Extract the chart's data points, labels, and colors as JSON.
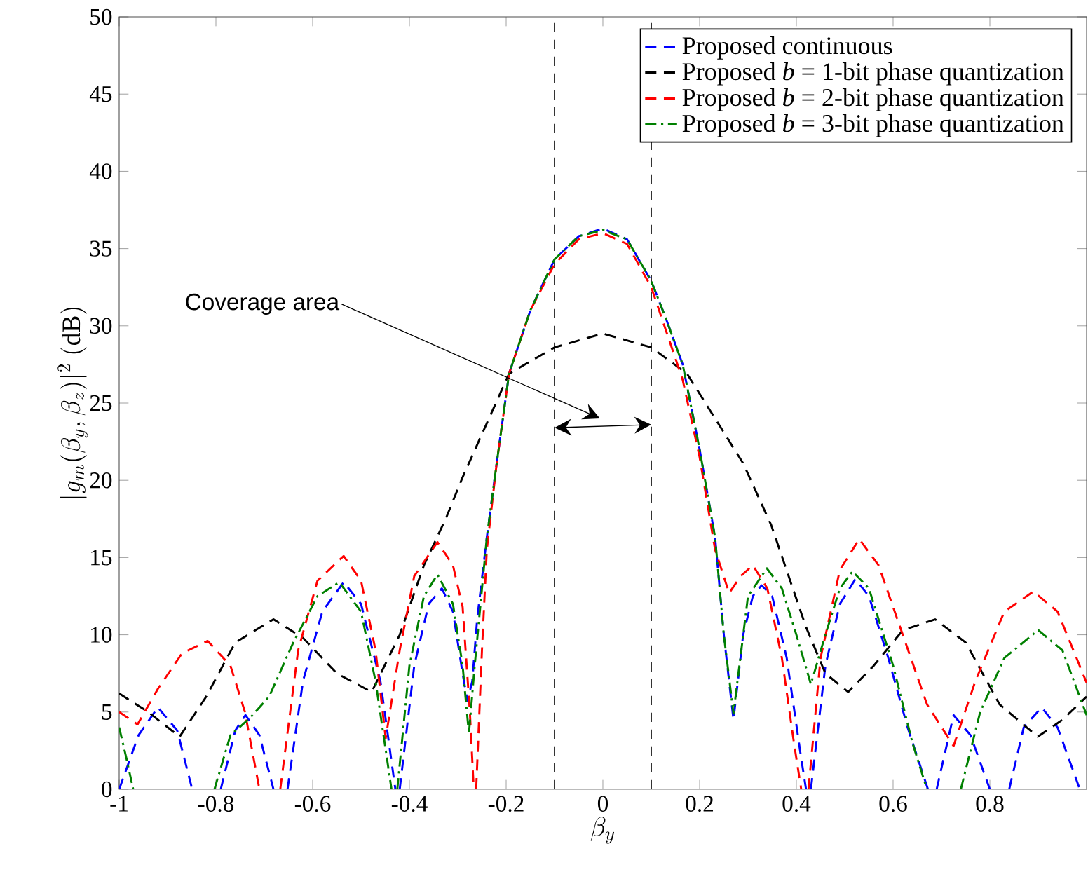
{
  "chart_data": {
    "type": "line",
    "xlabel": "\\beta_y",
    "ylabel": "|g_m(\\beta_y,\\beta_z)|^2~(\\mathrm{dB})",
    "xlim": [
      -1,
      1
    ],
    "ylim": [
      0,
      50
    ],
    "xticks": [
      -1,
      -0.8,
      -0.6,
      -0.4,
      -0.2,
      0,
      0.2,
      0.4,
      0.6,
      0.8
    ],
    "yticks": [
      0,
      5,
      10,
      15,
      20,
      25,
      30,
      35,
      40,
      45,
      50
    ],
    "grid": false,
    "legend": "top right",
    "marker": "none",
    "ref_lines": [
      {
        "axis": "x",
        "value": -0.1,
        "color": "#000000",
        "line_style": "dashed"
      },
      {
        "axis": "x",
        "value": 0.1,
        "color": "#000000",
        "line_style": "dashed"
      }
    ],
    "annotations": [
      "Coverage area"
    ],
    "series": [
      {
        "name": "Proposed continuous",
        "color": "#0000ff",
        "line_style": "dashed",
        "x": [
          -1,
          -0.96,
          -0.92,
          -0.88,
          -0.849,
          -0.82,
          -0.79,
          -0.76,
          -0.739,
          -0.71,
          -0.681,
          -0.665,
          -0.652,
          -0.62,
          -0.58,
          -0.536,
          -0.5,
          -0.46,
          -0.429,
          -0.425,
          -0.42,
          -0.39,
          -0.36,
          -0.333,
          -0.31,
          -0.29,
          -0.28,
          -0.27,
          -0.26,
          -0.24,
          -0.22,
          -0.194,
          -0.15,
          -0.1,
          -0.05,
          0,
          0.05,
          0.1,
          0.13,
          0.165,
          0.2,
          0.232,
          0.25,
          0.27,
          0.29,
          0.31,
          0.328,
          0.35,
          0.38,
          0.41,
          0.42,
          0.425,
          0.43,
          0.46,
          0.49,
          0.522,
          0.55,
          0.59,
          0.63,
          0.672,
          0.68,
          0.69,
          0.725,
          0.76,
          0.8,
          0.82,
          0.84,
          0.87,
          0.907,
          0.94,
          0.986
        ],
        "values": [
          0,
          3.5,
          5.3,
          3.8,
          0,
          null,
          0,
          3.8,
          4.8,
          3.5,
          0,
          null,
          0,
          7,
          11.5,
          13.4,
          12,
          7,
          0,
          null,
          0,
          8,
          12,
          13,
          11.5,
          7.5,
          5.7,
          7,
          11,
          16.3,
          21,
          26.9,
          31,
          34.3,
          35.8,
          36.3,
          35.6,
          32.9,
          30.5,
          27.5,
          22,
          16.3,
          10,
          4.5,
          10,
          12.5,
          13.2,
          12.5,
          8.5,
          2,
          0,
          null,
          0,
          8,
          12,
          13.6,
          12.5,
          8.5,
          4,
          0,
          null,
          0,
          4.8,
          3.5,
          0,
          null,
          0,
          4,
          5.3,
          4,
          0
        ]
      },
      {
        "name": "Proposed *b* = 1-bit phase quantization",
        "color": "#000000",
        "line_style": "dashed",
        "x": [
          -1,
          -0.94,
          -0.875,
          -0.82,
          -0.76,
          -0.681,
          -0.62,
          -0.55,
          -0.478,
          -0.42,
          -0.37,
          -0.325,
          -0.29,
          -0.194,
          -0.1,
          0,
          0.1,
          0.174,
          0.29,
          0.348,
          0.42,
          0.46,
          0.507,
          0.56,
          0.62,
          0.687,
          0.75,
          0.82,
          0.899,
          0.95,
          1
        ],
        "values": [
          6.2,
          5,
          3.4,
          6,
          9.5,
          11,
          9.8,
          7.5,
          6.3,
          10,
          14.5,
          17.5,
          20.2,
          26.9,
          28.6,
          29.5,
          28.6,
          26.9,
          21.1,
          17.1,
          10.5,
          7.5,
          6.3,
          8,
          10.3,
          11,
          9.5,
          5.5,
          3.4,
          4.5,
          6
        ]
      },
      {
        "name": "Proposed *b* = 2-bit phase quantization",
        "color": "#ff0000",
        "line_style": "dashed",
        "x": [
          -1,
          -0.962,
          -0.92,
          -0.87,
          -0.817,
          -0.77,
          -0.74,
          -0.71,
          -0.69,
          -0.667,
          -0.63,
          -0.59,
          -0.536,
          -0.5,
          -0.47,
          -0.449,
          -0.42,
          -0.39,
          -0.342,
          -0.31,
          -0.29,
          -0.275,
          -0.267,
          -0.265,
          -0.262,
          -0.25,
          -0.24,
          -0.22,
          -0.194,
          -0.15,
          -0.1,
          -0.05,
          0,
          0.05,
          0.1,
          0.165,
          0.2,
          0.232,
          0.261,
          0.285,
          0.31,
          0.34,
          0.37,
          0.395,
          0.41,
          0.418,
          0.425,
          0.45,
          0.49,
          0.53,
          0.57,
          0.62,
          0.67,
          0.725,
          0.77,
          0.83,
          0.89,
          0.94,
          1
        ],
        "values": [
          5,
          4.2,
          6.5,
          8.8,
          9.6,
          8,
          5,
          0,
          null,
          0,
          9,
          13.5,
          15.1,
          13.5,
          9,
          3.3,
          9,
          13.8,
          16,
          14.5,
          11.8,
          5,
          0,
          null,
          0,
          9,
          15.5,
          21,
          26.9,
          31,
          34,
          35.6,
          36,
          35.3,
          32.5,
          26.5,
          21.5,
          15.5,
          12.7,
          13.8,
          14.5,
          13,
          8.5,
          3,
          0,
          null,
          0,
          8.5,
          14.2,
          16.2,
          14.5,
          10,
          5.5,
          2.8,
          7,
          11.5,
          12.8,
          11.5,
          6.9
        ]
      },
      {
        "name": "Proposed *b* = 3-bit phase quantization",
        "color": "#008000",
        "line_style": "dashdot",
        "x": [
          -1,
          -0.985,
          -0.971,
          -0.9,
          -0.803,
          -0.77,
          -0.73,
          -0.69,
          -0.64,
          -0.59,
          -0.545,
          -0.5,
          -0.47,
          -0.437,
          -0.43,
          -0.425,
          -0.4,
          -0.37,
          -0.342,
          -0.31,
          -0.29,
          -0.277,
          -0.265,
          -0.24,
          -0.22,
          -0.194,
          -0.15,
          -0.1,
          -0.05,
          0,
          0.05,
          0.1,
          0.13,
          0.165,
          0.2,
          0.232,
          0.25,
          0.27,
          0.3,
          0.339,
          0.37,
          0.4,
          0.43,
          0.46,
          0.49,
          0.516,
          0.55,
          0.6,
          0.64,
          0.67,
          0.7,
          0.74,
          0.78,
          0.83,
          0.9,
          0.95,
          1
        ],
        "values": [
          4,
          2,
          0,
          null,
          0,
          3.5,
          4.6,
          6,
          9.5,
          12.5,
          13.4,
          11.5,
          7,
          0,
          null,
          0,
          8,
          12.5,
          13.9,
          12,
          8,
          3.6,
          8,
          16.3,
          21,
          26.9,
          31,
          34.3,
          35.8,
          36.2,
          35.6,
          32.9,
          30.5,
          27.5,
          22,
          16.3,
          10,
          4.9,
          12.5,
          14.3,
          13,
          10,
          6.8,
          10,
          13,
          14.1,
          13,
          8,
          3,
          0,
          null,
          0,
          5,
          8.5,
          10.3,
          9,
          4.8
        ]
      }
    ]
  }
}
